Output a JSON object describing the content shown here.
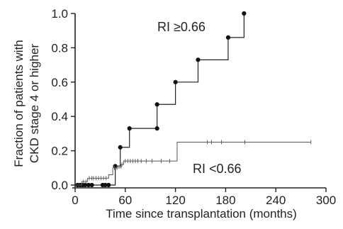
{
  "chart_data": {
    "type": "line",
    "step": true,
    "xlabel": "Time since transplantation (months)",
    "ylabel_lines": [
      "Fraction of patients with",
      "CKD stage 4 or higher"
    ],
    "xlim": [
      0,
      300
    ],
    "ylim": [
      0,
      1.0
    ],
    "x_ticks": [
      "0",
      "60",
      "120",
      "180",
      "240",
      "300"
    ],
    "y_ticks": [
      "0.0",
      "0.2",
      "0.4",
      "0.6",
      "0.8",
      "1.0"
    ],
    "grid": false,
    "series": [
      {
        "name": "RI ≥0.66",
        "steps": [
          [
            0,
            0.0
          ],
          [
            48,
            0.11
          ],
          [
            54,
            0.22
          ],
          [
            65,
            0.33
          ],
          [
            98,
            0.47
          ],
          [
            120,
            0.6
          ],
          [
            147,
            0.73
          ],
          [
            183,
            0.86
          ],
          [
            202,
            1.0
          ]
        ],
        "end_x": 202,
        "event_marks": [
          [
            3,
            0.0
          ],
          [
            6,
            0.0
          ],
          [
            9,
            0.0
          ],
          [
            12,
            0.0
          ],
          [
            16,
            0.0
          ],
          [
            20,
            0.0
          ],
          [
            33,
            0.0
          ],
          [
            36,
            0.0
          ],
          [
            40,
            0.0
          ],
          [
            48,
            0.11
          ],
          [
            54,
            0.22
          ],
          [
            65,
            0.33
          ],
          [
            98,
            0.33
          ],
          [
            98,
            0.47
          ],
          [
            120,
            0.6
          ],
          [
            147,
            0.73
          ],
          [
            183,
            0.86
          ],
          [
            202,
            1.0
          ]
        ]
      },
      {
        "name": "RI <0.66",
        "steps": [
          [
            0,
            0.0
          ],
          [
            8,
            0.02
          ],
          [
            15,
            0.04
          ],
          [
            40,
            0.06
          ],
          [
            45,
            0.1
          ],
          [
            55,
            0.12
          ],
          [
            58,
            0.14
          ],
          [
            122,
            0.25
          ]
        ],
        "end_x": 282,
        "censor_marks": [
          [
            10,
            0.02
          ],
          [
            13,
            0.02
          ],
          [
            17,
            0.04
          ],
          [
            20,
            0.04
          ],
          [
            22,
            0.04
          ],
          [
            25,
            0.04
          ],
          [
            28,
            0.04
          ],
          [
            31,
            0.04
          ],
          [
            34,
            0.04
          ],
          [
            37,
            0.04
          ],
          [
            47,
            0.1
          ],
          [
            50,
            0.1
          ],
          [
            56,
            0.12
          ],
          [
            60,
            0.14
          ],
          [
            63,
            0.14
          ],
          [
            66,
            0.14
          ],
          [
            69,
            0.14
          ],
          [
            72,
            0.14
          ],
          [
            75,
            0.14
          ],
          [
            79,
            0.14
          ],
          [
            85,
            0.14
          ],
          [
            92,
            0.14
          ],
          [
            103,
            0.14
          ],
          [
            113,
            0.14
          ],
          [
            158,
            0.25
          ],
          [
            163,
            0.25
          ],
          [
            175,
            0.25
          ],
          [
            203,
            0.25
          ],
          [
            282,
            0.25
          ]
        ]
      }
    ],
    "annotations": [
      "RI ≥0.66",
      "RI <0.66"
    ]
  }
}
